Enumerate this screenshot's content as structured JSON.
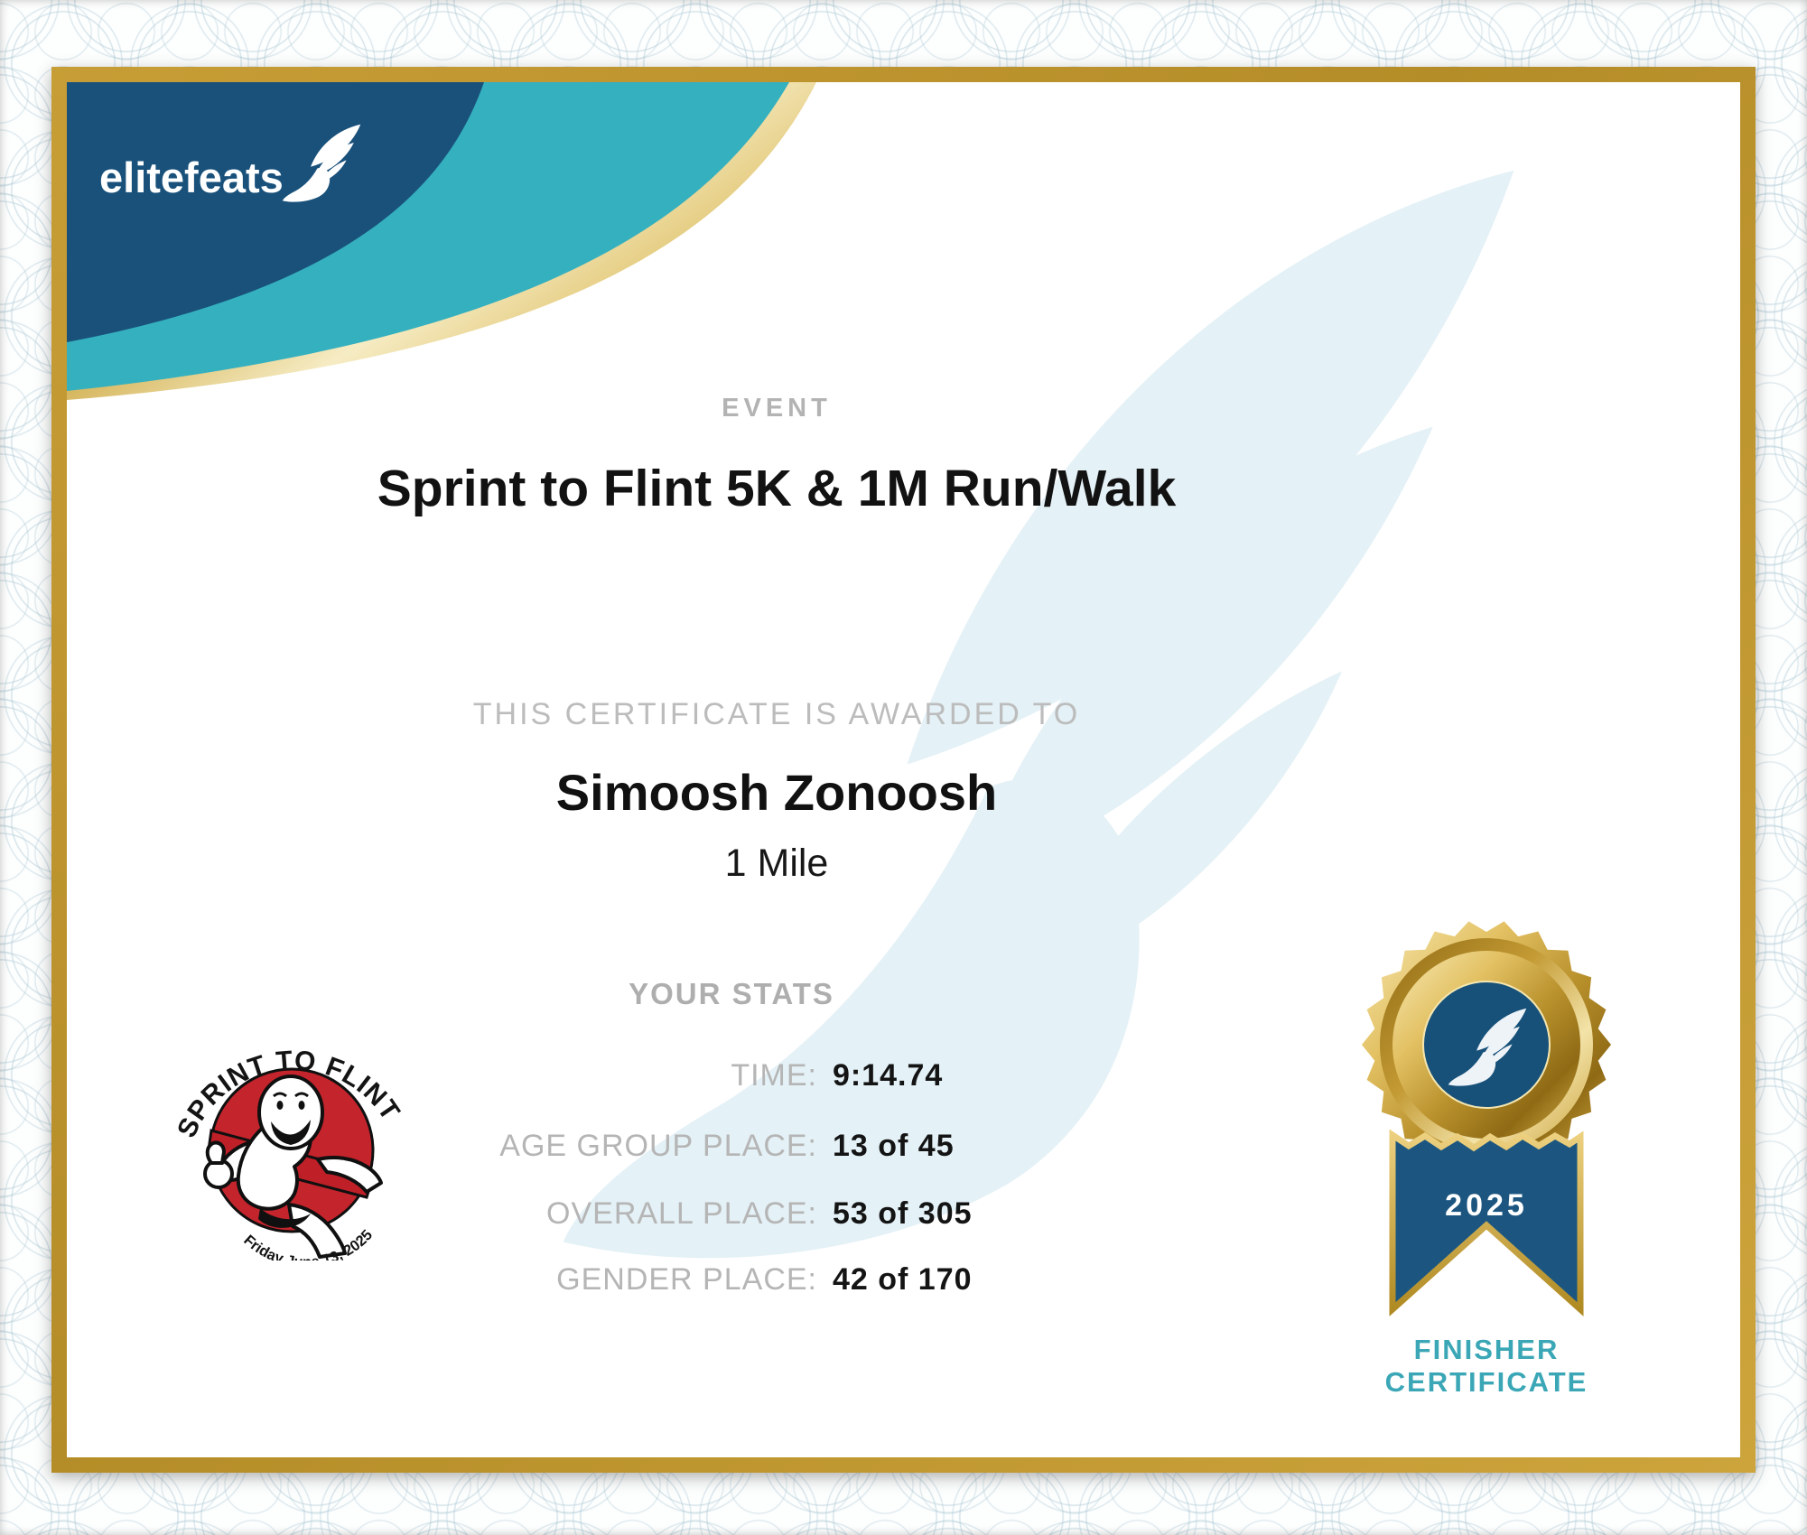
{
  "brand": {
    "name": "elitefeats"
  },
  "certificate": {
    "event_label": "EVENT",
    "event_name": "Sprint to Flint 5K & 1M Run/Walk",
    "awarded_label": "THIS CERTIFICATE IS AWARDED TO",
    "recipient": "Simoosh Zonoosh",
    "distance": "1 Mile",
    "stats_label": "YOUR STATS",
    "stats": [
      {
        "label": "TIME:",
        "value": "9:14.74"
      },
      {
        "label": "AGE GROUP PLACE:",
        "value": "13 of 45"
      },
      {
        "label": "OVERALL PLACE:",
        "value": "53 of 305"
      },
      {
        "label": "GENDER PLACE:",
        "value": "42 of 170"
      }
    ]
  },
  "medal": {
    "year": "2025",
    "caption_line1": "FINISHER",
    "caption_line2": "CERTIFICATE"
  },
  "event_logo": {
    "arc_top": "SPRINT TO FLINT",
    "arc_bottom": "Friday June 13, 2025"
  },
  "colors": {
    "navy": "#19517b",
    "teal": "#35b0bf",
    "gold_frame": "#bd9733",
    "logo_red": "#c4242c",
    "finisher_teal": "#3ba7b6",
    "label_gray": "#b5b5b5",
    "watermark_blue": "#e4f1f6"
  }
}
